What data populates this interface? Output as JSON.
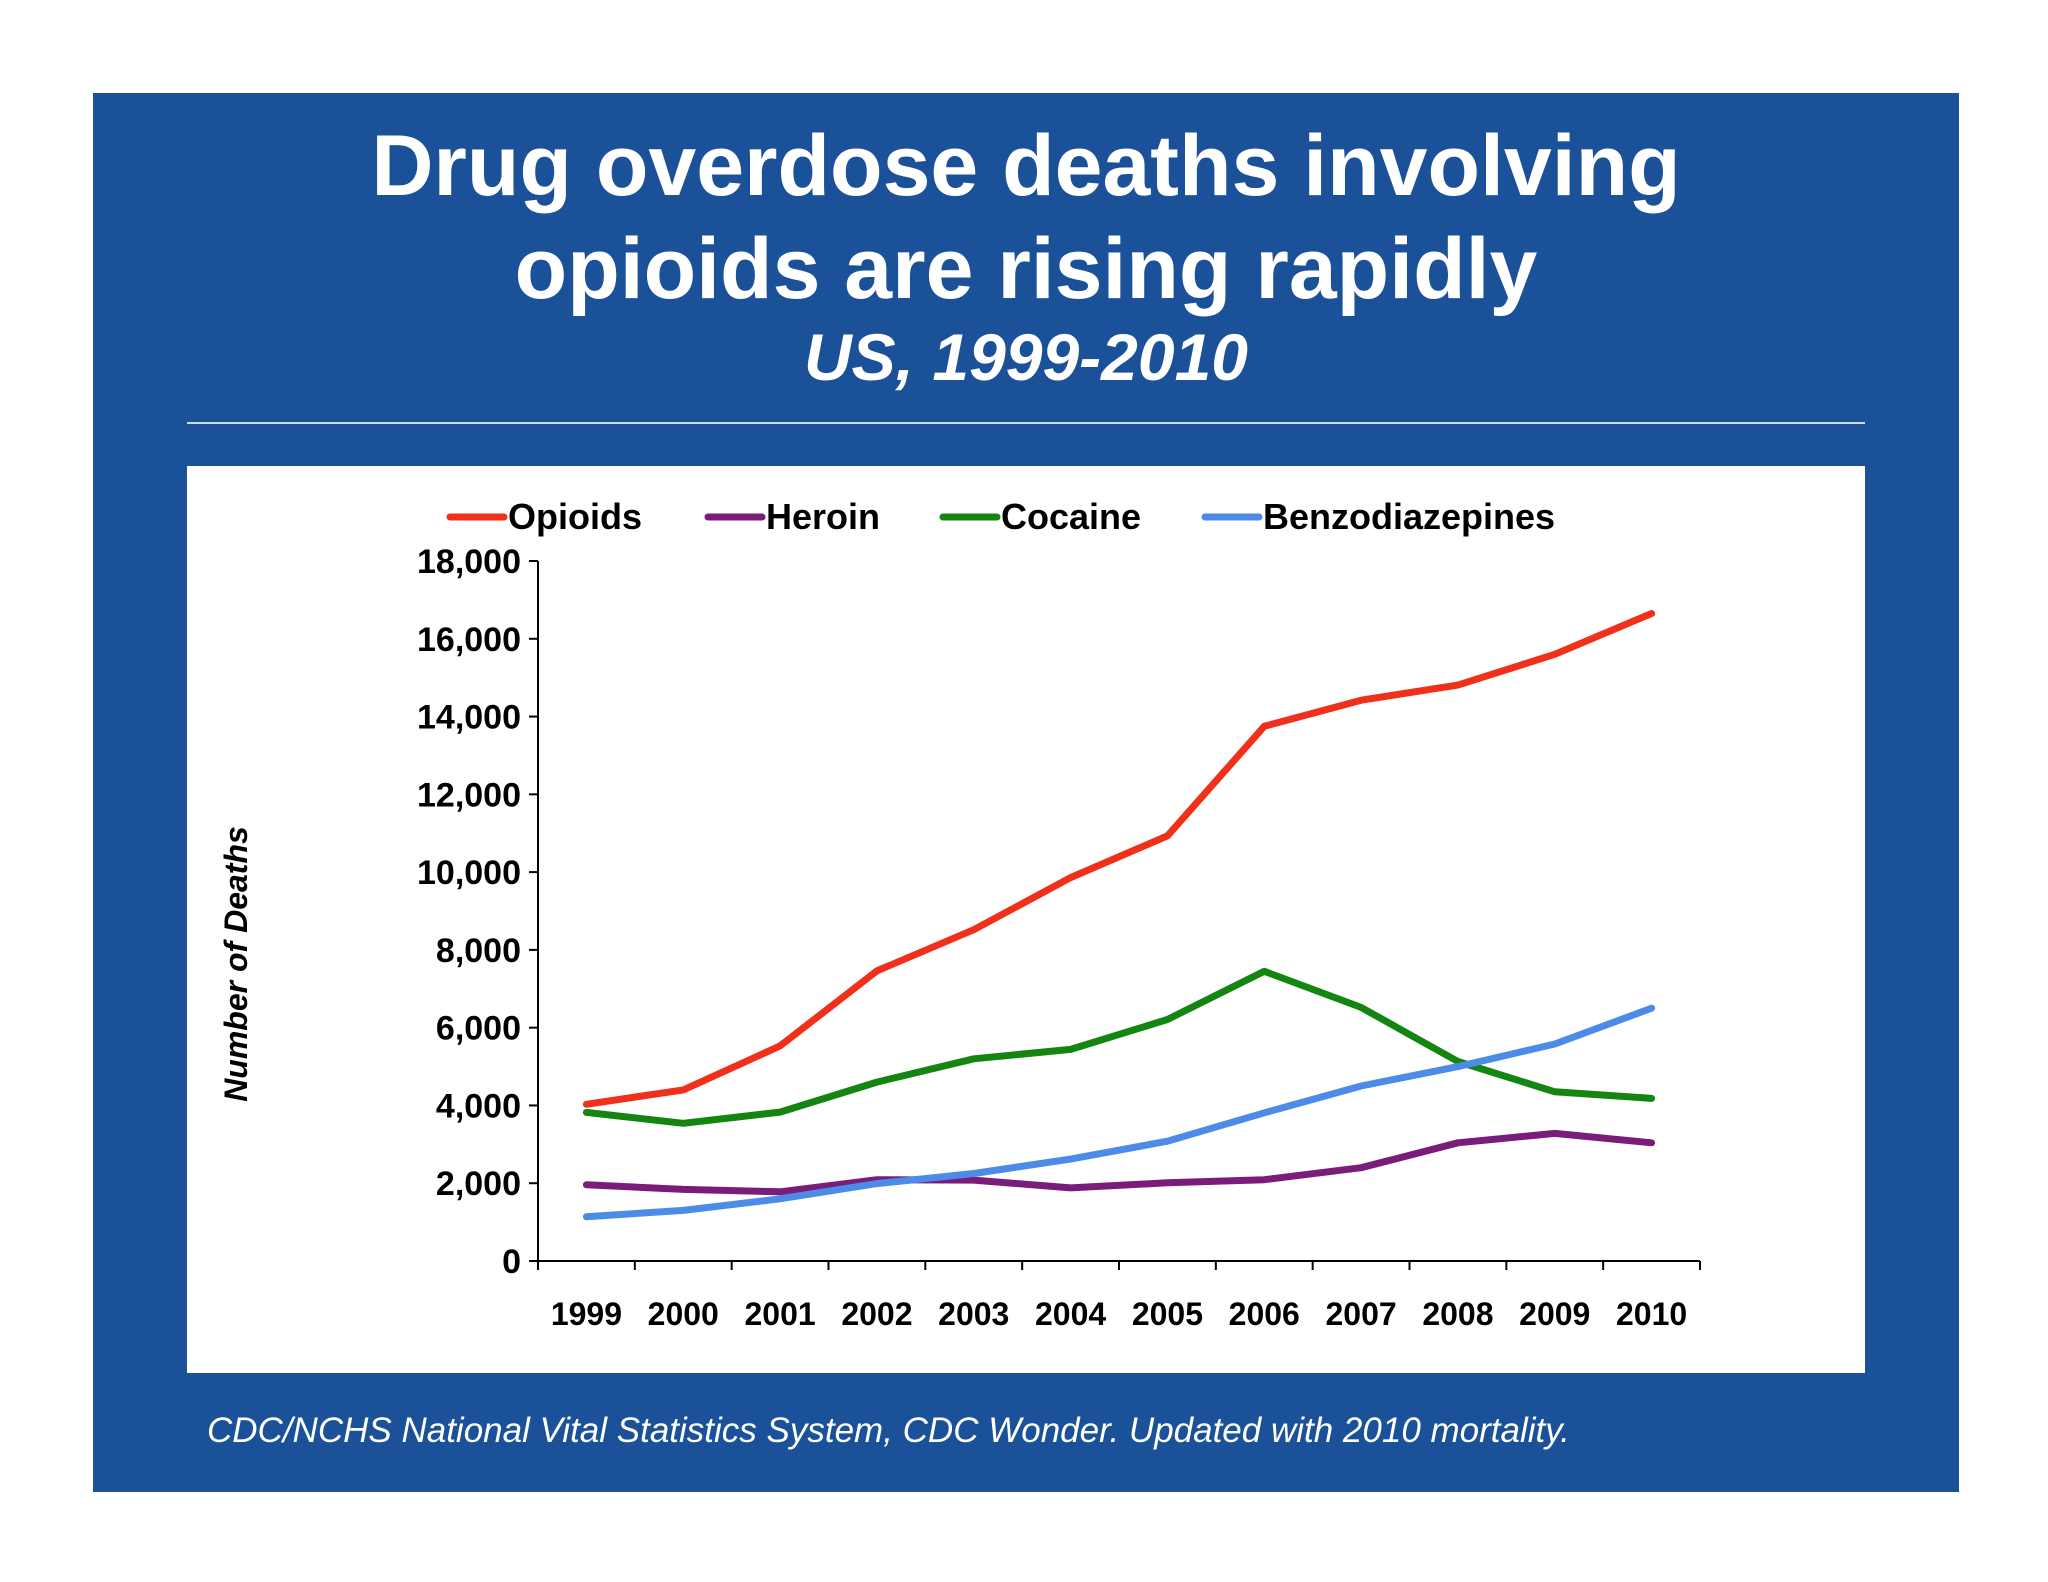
{
  "slide": {
    "title_line1": "Drug overdose deaths involving",
    "title_line2": "opioids are rising rapidly",
    "subtitle": "US, 1999-2010",
    "source": "CDC/NCHS National Vital Statistics System, CDC Wonder. Updated with 2010 mortality.",
    "background_color": "#1a5199"
  },
  "chart_data": {
    "type": "line",
    "title": "",
    "xlabel": "",
    "ylabel": "Number of Deaths",
    "ylim": [
      0,
      18000
    ],
    "yticks": [
      0,
      2000,
      4000,
      6000,
      8000,
      10000,
      12000,
      14000,
      16000,
      18000
    ],
    "ytick_labels": [
      "0",
      "2,000",
      "4,000",
      "6,000",
      "8,000",
      "10,000",
      "12,000",
      "14,000",
      "16,000",
      "18,000"
    ],
    "categories": [
      "1999",
      "2000",
      "2001",
      "2002",
      "2003",
      "2004",
      "2005",
      "2006",
      "2007",
      "2008",
      "2009",
      "2010"
    ],
    "grid": false,
    "legend_position": "top",
    "series": [
      {
        "name": "Opioids",
        "color": "#f0301b",
        "values": [
          4030,
          4400,
          5530,
          7460,
          8520,
          9860,
          10930,
          13750,
          14420,
          14810,
          15600,
          16650
        ]
      },
      {
        "name": "Heroin",
        "color": "#7a1c7a",
        "values": [
          1960,
          1840,
          1780,
          2090,
          2080,
          1880,
          2010,
          2090,
          2400,
          3040,
          3280,
          3040
        ]
      },
      {
        "name": "Cocaine",
        "color": "#138510",
        "values": [
          3820,
          3540,
          3830,
          4600,
          5200,
          5440,
          6210,
          7450,
          6520,
          5130,
          4350,
          4180
        ]
      },
      {
        "name": "Benzodiazepines",
        "color": "#4d8be8",
        "values": [
          1140,
          1300,
          1600,
          1990,
          2250,
          2620,
          3080,
          3810,
          4500,
          5000,
          5580,
          6500
        ]
      }
    ]
  }
}
